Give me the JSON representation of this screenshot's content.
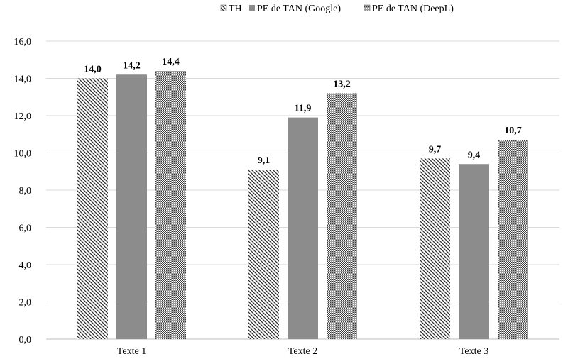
{
  "chart_data": {
    "type": "bar",
    "categories": [
      "Texte 1",
      "Texte 2",
      "Texte 3"
    ],
    "series": [
      {
        "name": "TH",
        "values": [
          14.0,
          9.1,
          9.7
        ],
        "labels": [
          "14,0",
          "9,1",
          "9,7"
        ],
        "pattern": "diagonal-hatch",
        "color": "#333333"
      },
      {
        "name": "PE de TAN (Google)",
        "values": [
          14.2,
          11.9,
          9.4
        ],
        "labels": [
          "14,2",
          "11,9",
          "9,4"
        ],
        "pattern": "solid",
        "color": "#8c8c8c"
      },
      {
        "name": "PE de TAN (DeepL)",
        "values": [
          14.4,
          13.2,
          10.7
        ],
        "labels": [
          "14,4",
          "13,2",
          "10,7"
        ],
        "pattern": "fine-checker",
        "color": "#333333"
      }
    ],
    "ylim": [
      0,
      16
    ],
    "yticks": [
      0,
      2,
      4,
      6,
      8,
      10,
      12,
      14,
      16
    ],
    "ytick_labels": [
      "0,0",
      "2,0",
      "4,0",
      "6,0",
      "8,0",
      "10,0",
      "12,0",
      "14,0",
      "16,0"
    ],
    "grid": true,
    "legend_position": "top-center",
    "title": "",
    "xlabel": "",
    "ylabel": ""
  }
}
